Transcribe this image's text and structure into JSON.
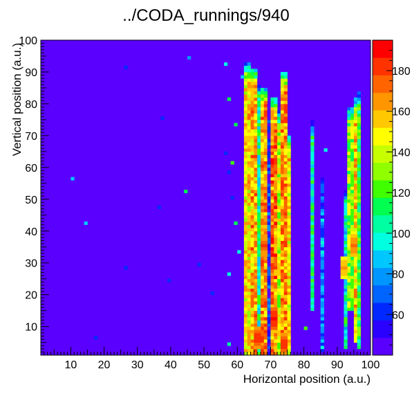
{
  "chart_data": {
    "type": "heatmap",
    "title": "../CODA_runnings/940",
    "xlabel": "Horizontal position (a.u.)",
    "ylabel": "Vertical position (a.u.)",
    "xlim": [
      1,
      100
    ],
    "ylim": [
      1,
      100
    ],
    "x_ticks": [
      10,
      20,
      30,
      40,
      50,
      60,
      70,
      80,
      90,
      100
    ],
    "y_ticks": [
      10,
      20,
      30,
      40,
      50,
      60,
      70,
      80,
      90,
      100
    ],
    "colorbar": {
      "range": [
        40,
        195
      ],
      "ticks": [
        60,
        80,
        100,
        120,
        140,
        160,
        180
      ],
      "palette": [
        "#5a00ff",
        "#2a00ff",
        "#0028ff",
        "#0064ff",
        "#0096ff",
        "#00c8ff",
        "#00ffe0",
        "#00ffa0",
        "#00ff50",
        "#40ff00",
        "#90ff00",
        "#c8ff00",
        "#ffff00",
        "#ffc800",
        "#ff9600",
        "#ff6400",
        "#ff3200",
        "#ff0000"
      ]
    },
    "background_value": 42,
    "bands": [
      {
        "x": [
          62,
          64
        ],
        "y": [
          1,
          93
        ],
        "value": 150
      },
      {
        "x": [
          64,
          66
        ],
        "y": [
          1,
          91
        ],
        "value": 160
      },
      {
        "x": [
          66,
          67
        ],
        "y": [
          1,
          88
        ],
        "value": 105
      },
      {
        "x": [
          67,
          69
        ],
        "y": [
          1,
          85
        ],
        "value": 165
      },
      {
        "x": [
          69,
          70
        ],
        "y": [
          1,
          80
        ],
        "value": 60
      },
      {
        "x": [
          70,
          72
        ],
        "y": [
          1,
          82
        ],
        "value": 170
      },
      {
        "x": [
          72,
          73
        ],
        "y": [
          1,
          78
        ],
        "value": 140
      },
      {
        "x": [
          73,
          75
        ],
        "y": [
          1,
          90
        ],
        "value": 165
      },
      {
        "x": [
          75,
          76
        ],
        "y": [
          1,
          70
        ],
        "value": 150
      },
      {
        "x": [
          82,
          83
        ],
        "y": [
          15,
          75
        ],
        "value": 105
      },
      {
        "x": [
          85,
          86
        ],
        "y": [
          2,
          60
        ],
        "value": 75
      },
      {
        "x": [
          92,
          93
        ],
        "y": [
          3,
          55
        ],
        "value": 100
      },
      {
        "x": [
          93,
          95
        ],
        "y": [
          15,
          80
        ],
        "value": 130
      },
      {
        "x": [
          95,
          96
        ],
        "y": [
          5,
          82
        ],
        "value": 155
      },
      {
        "x": [
          96,
          97
        ],
        "y": [
          3,
          85
        ],
        "value": 115
      }
    ],
    "hotspots": [
      {
        "x": 66,
        "y": 6,
        "value": 185
      },
      {
        "x": 71,
        "y": 12,
        "value": 190
      },
      {
        "x": 74,
        "y": 4,
        "value": 185
      },
      {
        "x": 68,
        "y": 35,
        "value": 180
      },
      {
        "x": 95,
        "y": 35,
        "value": 175
      },
      {
        "x": 92,
        "y": 28,
        "value": 165
      }
    ],
    "scattered_points": [
      {
        "x": 10,
        "y": 56,
        "value": 85
      },
      {
        "x": 14,
        "y": 42,
        "value": 90
      },
      {
        "x": 17,
        "y": 6,
        "value": 60
      },
      {
        "x": 26,
        "y": 28,
        "value": 65
      },
      {
        "x": 26,
        "y": 91,
        "value": 60
      },
      {
        "x": 36,
        "y": 47,
        "value": 60
      },
      {
        "x": 37,
        "y": 75,
        "value": 60
      },
      {
        "x": 39,
        "y": 24,
        "value": 60
      },
      {
        "x": 45,
        "y": 94,
        "value": 75
      },
      {
        "x": 48,
        "y": 29,
        "value": 65
      },
      {
        "x": 52,
        "y": 20,
        "value": 60
      },
      {
        "x": 56,
        "y": 92,
        "value": 100
      },
      {
        "x": 56,
        "y": 64,
        "value": 60
      },
      {
        "x": 57,
        "y": 58,
        "value": 65
      },
      {
        "x": 57,
        "y": 26,
        "value": 100
      },
      {
        "x": 57,
        "y": 4,
        "value": 105
      },
      {
        "x": 57,
        "y": 81,
        "value": 110
      },
      {
        "x": 58,
        "y": 50,
        "value": 60
      },
      {
        "x": 58,
        "y": 61,
        "value": 120
      },
      {
        "x": 59,
        "y": 73,
        "value": 115
      },
      {
        "x": 59,
        "y": 42,
        "value": 110
      },
      {
        "x": 60,
        "y": 33,
        "value": 95
      },
      {
        "x": 61,
        "y": 88,
        "value": 90
      },
      {
        "x": 44,
        "y": 52,
        "value": 110
      },
      {
        "x": 80,
        "y": 9,
        "value": 120
      },
      {
        "x": 86,
        "y": 65,
        "value": 95
      }
    ]
  }
}
